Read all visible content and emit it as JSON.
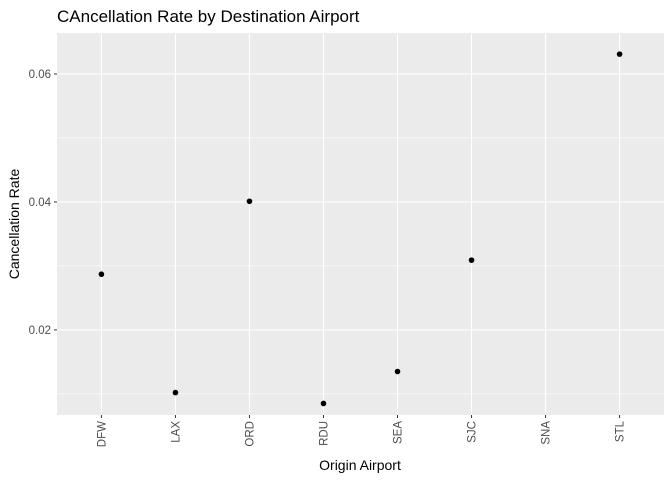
{
  "chart_data": {
    "type": "scatter",
    "title": "CAncellation Rate by Destination Airport",
    "xlabel": "Origin Airport",
    "ylabel": "Cancellation Rate",
    "categories": [
      "DFW",
      "LAX",
      "ORD",
      "RDU",
      "SEA",
      "SJC",
      "SNA",
      "STL"
    ],
    "values": [
      0.0287,
      0.0102,
      0.0401,
      0.0085,
      0.0135,
      0.0309,
      null,
      0.0631
    ],
    "ylim": [
      0.0067,
      0.0664
    ],
    "y_ticks": [
      0.02,
      0.04,
      0.06
    ],
    "y_tick_labels": [
      "0.02",
      "0.04",
      "0.06"
    ],
    "grid": true,
    "colors": {
      "panel_background": "#ebebeb",
      "grid_major": "#ffffff",
      "point": "#000000",
      "tick_mark": "#333333"
    }
  }
}
